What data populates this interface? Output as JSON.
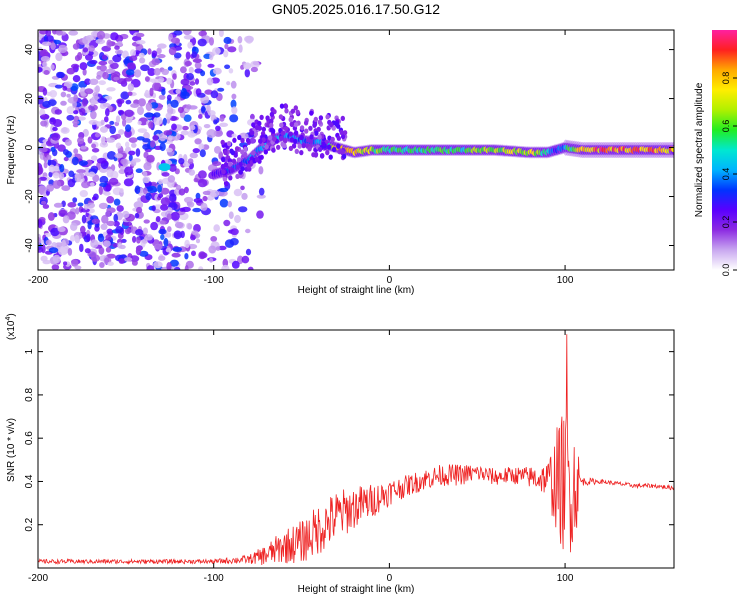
{
  "title": "GN05.2025.016.17.50.G12",
  "colorbar": {
    "label": "Normalized spectral amplitude",
    "ticks": [
      "0.0",
      "0.2",
      "0.4",
      "0.6",
      "0.8"
    ],
    "tick_values": [
      0.0,
      0.2,
      0.4,
      0.6,
      0.8
    ],
    "range": [
      0,
      1
    ],
    "colors": [
      "#ffffff",
      "#c9a8f0",
      "#8c2be2",
      "#5a00ff",
      "#0033ff",
      "#00b4ff",
      "#00e8d0",
      "#22ee22",
      "#b0f000",
      "#ffee00",
      "#ffaa00",
      "#ff2020",
      "#ff20a0"
    ]
  },
  "chart_data": [
    {
      "type": "heatmap",
      "title": "GN05.2025.016.17.50.G12",
      "xlabel": "Height of straight line (km)",
      "ylabel": "Frequency (Hz)",
      "xlim": [
        -200,
        162
      ],
      "ylim": [
        -50,
        48
      ],
      "x_ticks": [
        -200,
        -100,
        0,
        100
      ],
      "y_ticks": [
        -40,
        -20,
        0,
        20,
        40
      ],
      "colorbar_label": "Normalized spectral amplitude",
      "ridge": {
        "x": [
          -100,
          -90,
          -80,
          -70,
          -60,
          -50,
          -40,
          -30,
          -20,
          -10,
          0,
          20,
          40,
          60,
          80,
          90,
          95,
          100,
          110,
          130,
          162
        ],
        "y": [
          -11,
          -9,
          -5,
          2,
          5,
          3,
          2,
          0,
          -2,
          -1,
          -1,
          -1,
          -1,
          -1,
          -2,
          -2,
          -1,
          0,
          -1,
          -1,
          -1
        ],
        "amplitude": [
          0.25,
          0.35,
          0.4,
          0.45,
          0.45,
          0.4,
          0.4,
          0.8,
          0.9,
          0.7,
          0.6,
          0.6,
          0.6,
          0.7,
          0.8,
          0.5,
          0.3,
          0.5,
          0.9,
          0.95,
          0.9
        ]
      },
      "noise_region_x": [
        -200,
        -80
      ],
      "noise_amplitude": 0.15
    },
    {
      "type": "line",
      "xlabel": "Height of straight line (km)",
      "ylabel": "SNR (10 * v/v)",
      "y_scale_label": "(x10",
      "y_scale_exp": "4",
      "y_scale_suffix": ")",
      "xlim": [
        -200,
        162
      ],
      "ylim": [
        0,
        1.1
      ],
      "x_ticks": [
        -200,
        -100,
        0,
        100
      ],
      "y_ticks": [
        0.2,
        0.4,
        0.6,
        0.8,
        1
      ],
      "series": [
        {
          "color": "#ee2222",
          "x": [
            -200,
            -150,
            -100,
            -80,
            -70,
            -60,
            -50,
            -40,
            -30,
            -20,
            -10,
            0,
            10,
            20,
            30,
            40,
            50,
            60,
            70,
            80,
            90,
            95,
            100,
            105,
            110,
            120,
            130,
            140,
            150,
            162
          ],
          "y": [
            0.03,
            0.03,
            0.03,
            0.04,
            0.06,
            0.1,
            0.12,
            0.18,
            0.24,
            0.28,
            0.31,
            0.35,
            0.38,
            0.41,
            0.43,
            0.43,
            0.44,
            0.42,
            0.43,
            0.42,
            0.41,
            0.4,
            0.4,
            0.38,
            0.4,
            0.4,
            0.39,
            0.38,
            0.38,
            0.37
          ],
          "noise": [
            0.01,
            0.01,
            0.01,
            0.02,
            0.05,
            0.08,
            0.1,
            0.12,
            0.12,
            0.1,
            0.08,
            0.06,
            0.05,
            0.05,
            0.05,
            0.05,
            0.04,
            0.04,
            0.04,
            0.05,
            0.08,
            0.25,
            0.35,
            0.3,
            0.02,
            0.01,
            0.01,
            0.01,
            0.01,
            0.01
          ],
          "peak": {
            "x": 101,
            "y": 1.08
          }
        }
      ]
    }
  ]
}
